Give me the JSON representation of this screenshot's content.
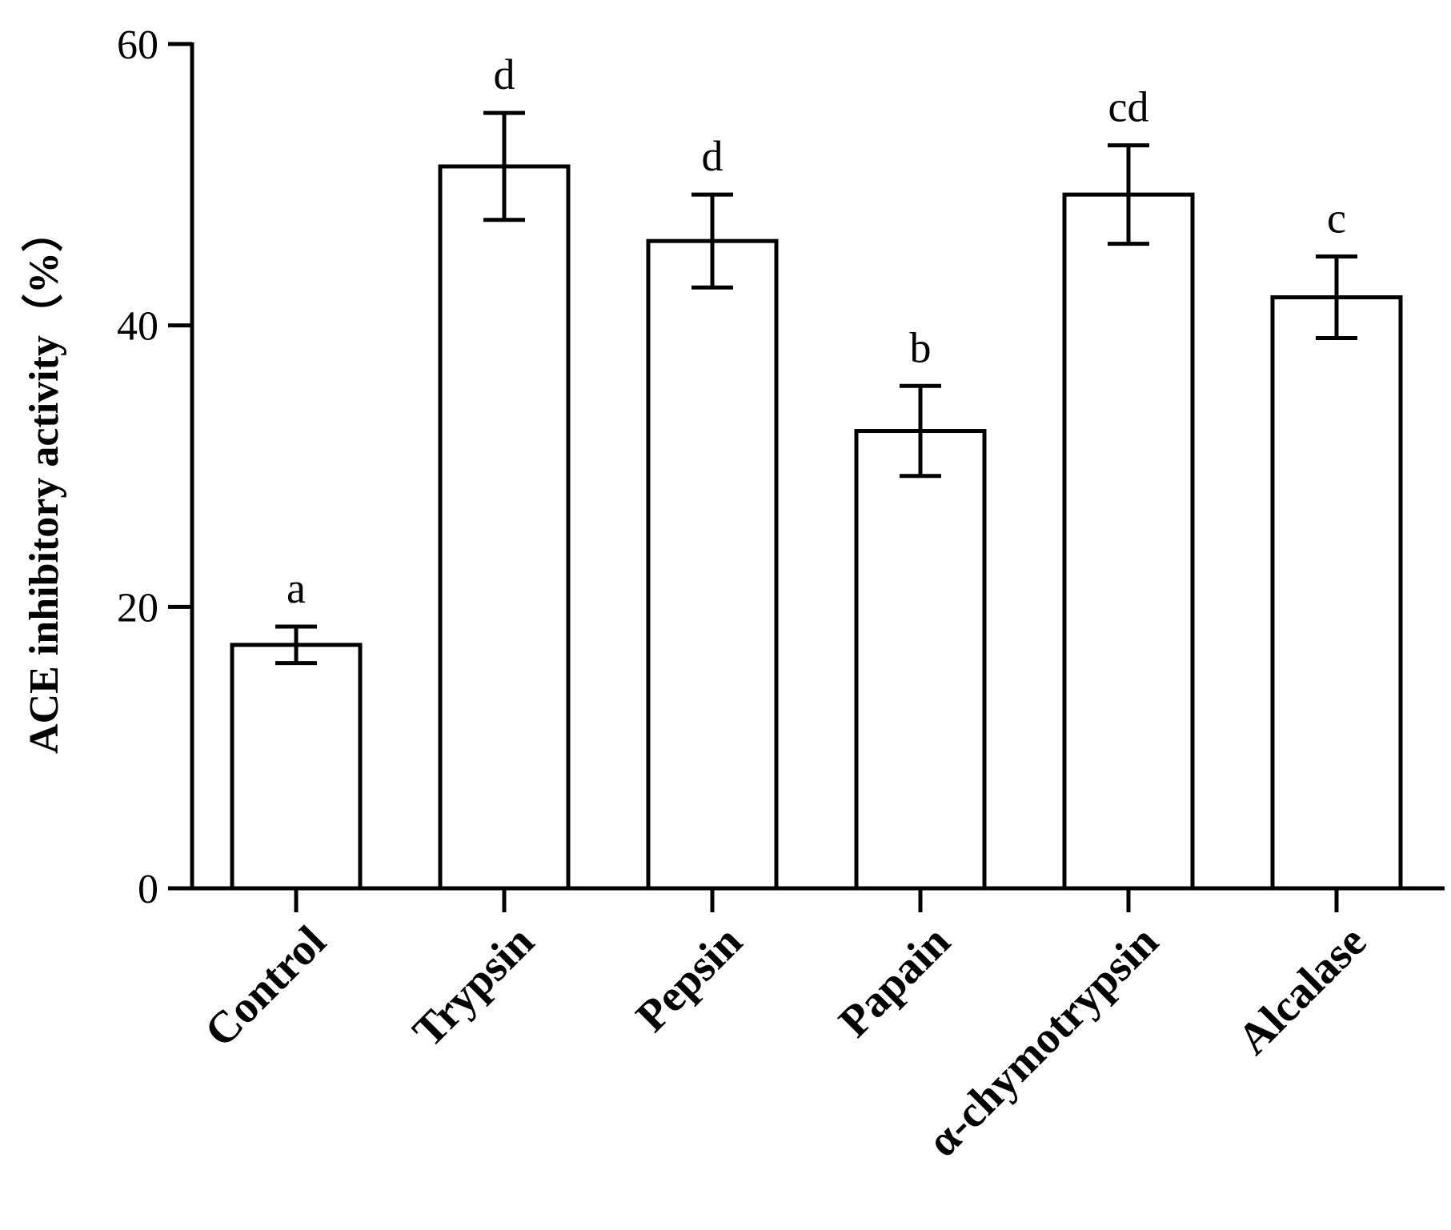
{
  "chart_data": {
    "type": "bar",
    "title": "",
    "xlabel": "",
    "ylabel": "ACE inhibitory activity（%）",
    "ylim": [
      0,
      60
    ],
    "yticks": [
      0,
      20,
      40,
      60
    ],
    "categories": [
      "Control",
      "Trypsin",
      "Pepsin",
      "Papain",
      "α-chymotrypsin",
      "Alcalase"
    ],
    "series": [
      {
        "values": [
          17.3,
          51.3,
          46.0,
          32.5,
          49.3,
          42.0
        ],
        "error": [
          1.3,
          3.8,
          3.3,
          3.2,
          3.5,
          2.9
        ],
        "labels": [
          "a",
          "d",
          "d",
          "b",
          "cd",
          "c"
        ]
      }
    ],
    "grid": false,
    "legend": "none",
    "bar_fill": "#ffffff",
    "bar_stroke": "#000000"
  }
}
